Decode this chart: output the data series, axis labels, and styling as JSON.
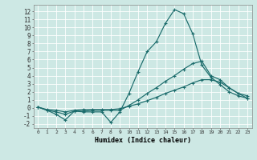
{
  "xlabel": "Humidex (Indice chaleur)",
  "bg_color": "#cde8e4",
  "grid_color": "#b0d4d0",
  "line_color": "#1a6b6b",
  "x_ticks": [
    0,
    1,
    2,
    3,
    4,
    5,
    6,
    7,
    8,
    9,
    10,
    11,
    12,
    13,
    14,
    15,
    16,
    17,
    18,
    19,
    20,
    21,
    22,
    23
  ],
  "y_ticks": [
    -2,
    -1,
    0,
    1,
    2,
    3,
    4,
    5,
    6,
    7,
    8,
    9,
    10,
    11,
    12
  ],
  "xlim": [
    -0.5,
    23.5
  ],
  "ylim": [
    -2.5,
    12.8
  ],
  "line1_x": [
    0,
    1,
    2,
    3,
    4,
    5,
    6,
    7,
    8,
    9,
    10,
    11,
    12,
    13,
    14,
    15,
    16,
    17,
    18,
    19,
    20,
    21,
    22,
    23
  ],
  "line1_y": [
    0.1,
    -0.3,
    -0.8,
    -1.5,
    -0.4,
    -0.5,
    -0.5,
    -0.5,
    -1.8,
    -0.5,
    1.8,
    4.5,
    7.0,
    8.2,
    10.5,
    12.2,
    11.7,
    9.2,
    5.3,
    3.8,
    2.9,
    2.0,
    1.5,
    1.2
  ],
  "line2_x": [
    0,
    1,
    2,
    3,
    4,
    5,
    6,
    7,
    8,
    9,
    10,
    11,
    12,
    13,
    14,
    15,
    16,
    17,
    18,
    19,
    20,
    21,
    22,
    23
  ],
  "line2_y": [
    0.1,
    -0.3,
    -0.5,
    -0.8,
    -0.4,
    -0.4,
    -0.3,
    -0.3,
    -0.3,
    -0.3,
    0.3,
    1.0,
    1.8,
    2.5,
    3.3,
    4.0,
    4.8,
    5.5,
    5.8,
    4.0,
    3.5,
    2.5,
    1.8,
    1.2
  ],
  "line3_x": [
    0,
    1,
    2,
    3,
    4,
    5,
    6,
    7,
    8,
    9,
    10,
    11,
    12,
    13,
    14,
    15,
    16,
    17,
    18,
    19,
    20,
    21,
    22,
    23
  ],
  "line3_y": [
    0.1,
    -0.2,
    -0.3,
    -0.5,
    -0.3,
    -0.2,
    -0.2,
    -0.2,
    -0.2,
    -0.1,
    0.2,
    0.5,
    0.9,
    1.3,
    1.8,
    2.2,
    2.6,
    3.1,
    3.5,
    3.5,
    3.2,
    2.5,
    1.8,
    1.5
  ]
}
